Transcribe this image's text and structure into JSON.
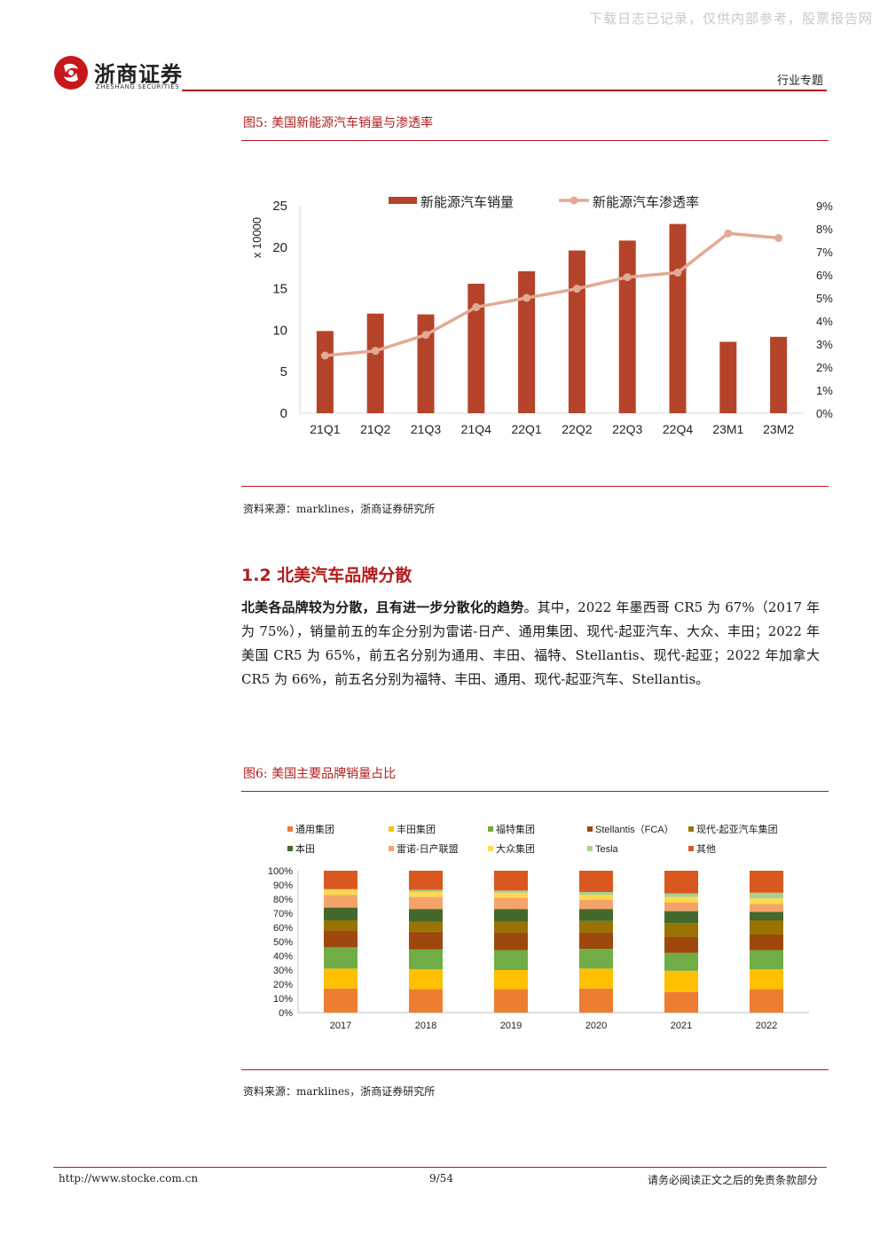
{
  "watermark": "下载日志已记录，仅供内部参考，股票报告网",
  "header": {
    "logo_cn": "浙商证券",
    "logo_en": "ZHESHANG SECURITIES",
    "tag": "行业专题"
  },
  "figure5": {
    "title": "图5:  美国新能源汽车销量与渗透率",
    "source": "资料来源：marklines，浙商证券研究所"
  },
  "section": {
    "title": "1.2 北美汽车品牌分散"
  },
  "paragraph": {
    "bold_lead": "北美各品牌较为分散，且有进一步分散化的趋势",
    "rest": "。其中，2022 年墨西哥 CR5 为 67%（2017 年为 75%），销量前五的车企分别为雷诺-日产、通用集团、现代-起亚汽车、大众、丰田；2022 年美国 CR5 为 65%，前五名分别为通用、丰田、福特、Stellantis、现代-起亚；2022 年加拿大 CR5 为 66%，前五名分别为福特、丰田、通用、现代-起亚汽车、Stellantis。"
  },
  "figure6": {
    "title": "图6:  美国主要品牌销量占比",
    "source": "资料来源：marklines，浙商证券研究所"
  },
  "footer": {
    "url": "http://www.stocke.com.cn",
    "page": "9/54",
    "note": "请务必阅读正文之后的免责条款部分"
  },
  "colors": {
    "accent": "#b11d1d",
    "bar": "#b5432a",
    "line": "#e2aa94"
  },
  "chart_data": [
    {
      "type": "bar+line",
      "categories": [
        "21Q1",
        "21Q2",
        "21Q3",
        "21Q4",
        "22Q1",
        "22Q2",
        "22Q3",
        "22Q4",
        "23M1",
        "23M2"
      ],
      "series": [
        {
          "name": "新能源汽车销量",
          "type": "bar",
          "axis": "left",
          "values": [
            9.9,
            12.0,
            11.9,
            15.6,
            17.1,
            19.6,
            20.8,
            22.8,
            8.6,
            9.2
          ]
        },
        {
          "name": "新能源汽车渗透率",
          "type": "line",
          "axis": "right",
          "values": [
            2.5,
            2.7,
            3.4,
            4.6,
            5.0,
            5.4,
            5.9,
            6.1,
            7.8,
            7.6
          ]
        }
      ],
      "ylabel": "x 10000",
      "ylim": [
        0,
        25
      ],
      "yticks": [
        "0",
        "5",
        "10",
        "15",
        "20",
        "25"
      ],
      "y2lim": [
        0,
        9
      ],
      "y2ticks": [
        "0%",
        "1%",
        "2%",
        "3%",
        "4%",
        "5%",
        "6%",
        "7%",
        "8%",
        "9%"
      ],
      "legend": "top",
      "grid": false
    },
    {
      "type": "stacked-bar",
      "categories": [
        "2017",
        "2018",
        "2019",
        "2020",
        "2021",
        "2022"
      ],
      "series": [
        {
          "name": "通用集团",
          "color": "#ed7d31",
          "values": [
            17,
            16.5,
            16.5,
            17,
            14.5,
            16.5
          ]
        },
        {
          "name": "丰田集团",
          "color": "#ffc000",
          "values": [
            14,
            14,
            13.5,
            14,
            15,
            14
          ]
        },
        {
          "name": "福特集团",
          "color": "#70ad47",
          "values": [
            15,
            14,
            14,
            14,
            12.5,
            13.5
          ]
        },
        {
          "name": "Stellantis（FCA）",
          "color": "#9e480e",
          "values": [
            12,
            12.5,
            12.5,
            11.5,
            11.5,
            11
          ]
        },
        {
          "name": "现代-起亚汽车集团",
          "color": "#997300",
          "values": [
            7,
            7,
            7.5,
            8,
            9.5,
            10
          ]
        },
        {
          "name": "本田",
          "color": "#43682b",
          "values": [
            9,
            9,
            9,
            8.5,
            8.5,
            6
          ]
        },
        {
          "name": "雷诺-日产联盟",
          "color": "#f4a36b",
          "values": [
            9,
            8.5,
            8,
            6.5,
            6,
            5.5
          ]
        },
        {
          "name": "大众集团",
          "color": "#ffd84d",
          "values": [
            3.5,
            3.5,
            3.5,
            3.5,
            4,
            4
          ]
        },
        {
          "name": "Tesla",
          "color": "#a9d08e",
          "values": [
            0.5,
            1.5,
            1.5,
            2,
            2.5,
            4
          ]
        },
        {
          "name": "其他",
          "color": "#d9581f",
          "values": [
            13,
            13.5,
            14,
            15,
            16,
            15.5
          ]
        }
      ],
      "ylim": [
        0,
        100
      ],
      "yticks": [
        "0%",
        "10%",
        "20%",
        "30%",
        "40%",
        "50%",
        "60%",
        "70%",
        "80%",
        "90%",
        "100%"
      ],
      "legend": "top",
      "grid": false
    }
  ]
}
